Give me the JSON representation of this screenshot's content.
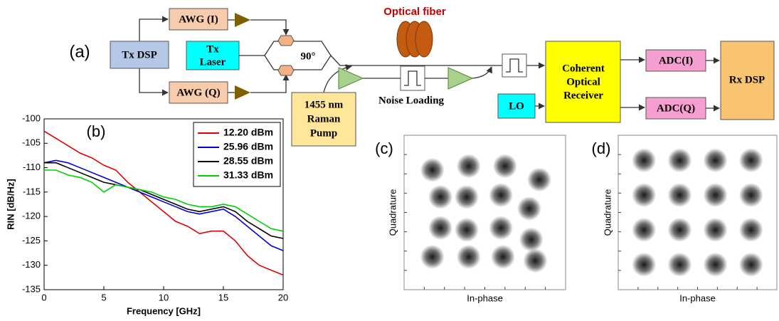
{
  "diagram": {
    "label": "(a)",
    "nodes": [
      {
        "lines": [
          "Tx DSP"
        ]
      },
      {
        "lines": [
          "AWG (I)"
        ]
      },
      {
        "lines": [
          "AWG (Q)"
        ]
      },
      {
        "lines": [
          "Tx",
          "Laser"
        ]
      },
      {
        "lines": [
          "90°"
        ]
      },
      {
        "lines": [
          "Optical fiber"
        ]
      },
      {
        "lines": [
          "1455 nm",
          "Raman",
          "Pump"
        ]
      },
      {
        "lines": [
          "Noise Loading"
        ]
      },
      {
        "lines": [
          "LO"
        ]
      },
      {
        "lines": [
          "Coherent",
          "Optical",
          "Receiver"
        ]
      },
      {
        "lines": [
          "ADC(I)"
        ]
      },
      {
        "lines": [
          "ADC(Q)"
        ]
      },
      {
        "lines": [
          "Rx DSP"
        ]
      }
    ]
  },
  "chart_data": [
    {
      "type": "line",
      "title": "(b)",
      "x_label": "Frequency [GHz]",
      "y_label": "RIN [dB/Hz]",
      "x": [
        0,
        1,
        2,
        3,
        4,
        5,
        6,
        7,
        8,
        9,
        10,
        11,
        12,
        13,
        14,
        15,
        16,
        17,
        18,
        19,
        20
      ],
      "series": [
        {
          "name": "12.20 dBm",
          "color": "#e00000",
          "values": [
            -102.5,
            -104,
            -105.5,
            -107,
            -108,
            -109.5,
            -110.5,
            -113,
            -115,
            -117,
            -119,
            -121,
            -122,
            -123.5,
            -123,
            -123,
            -125,
            -128,
            -130,
            -131,
            -132
          ]
        },
        {
          "name": "25.96 dBm",
          "color": "#0000d0",
          "values": [
            -109,
            -108.5,
            -109,
            -110,
            -111,
            -112,
            -113,
            -114,
            -115,
            -116,
            -117,
            -118,
            -119,
            -119.5,
            -119,
            -118.5,
            -120,
            -122,
            -124,
            -126,
            -127
          ]
        },
        {
          "name": "28.55 dBm",
          "color": "#000000",
          "values": [
            -109,
            -109,
            -110,
            -111,
            -112,
            -113,
            -113.5,
            -114,
            -114.5,
            -115.5,
            -116.5,
            -117.5,
            -118.5,
            -119,
            -118.5,
            -118,
            -119,
            -121,
            -122.5,
            -124,
            -124.5
          ]
        },
        {
          "name": "31.33 dBm",
          "color": "#00d000",
          "values": [
            -110.5,
            -110.5,
            -111.5,
            -112,
            -113,
            -115,
            -113.5,
            -114,
            -114.5,
            -115,
            -116,
            -116.5,
            -117.5,
            -118,
            -118,
            -117.5,
            -118,
            -119.5,
            -121,
            -122.5,
            -123
          ]
        }
      ],
      "xlim": [
        0,
        20
      ],
      "xticks": [
        0,
        5,
        10,
        15,
        20
      ],
      "ylim": [
        -135,
        -100
      ],
      "yticks": [
        -100,
        -105,
        -110,
        -115,
        -120,
        -125,
        -130,
        -135
      ],
      "legend": "upper right",
      "grid": false
    },
    {
      "type": "scatter",
      "title": "(c)",
      "x_label": "In-phase",
      "y_label": "Quadrature",
      "color": "#000000",
      "x": [
        -2.6,
        -0.8,
        1.0,
        2.7,
        2.2,
        2.3,
        2.5,
        0.9,
        -0.8,
        -2.6,
        -2.2,
        -2.2,
        -0.9,
        0.8,
        -0.9,
        0.8
      ],
      "values": [
        2.2,
        2.4,
        2.4,
        1.7,
        0.2,
        -1.4,
        -2.5,
        -2.3,
        -2.3,
        -2.3,
        -0.8,
        0.8,
        0.8,
        0.9,
        -0.9,
        -0.8
      ],
      "xlim": [
        -4,
        4
      ],
      "ylim": [
        -4,
        4
      ]
    },
    {
      "type": "scatter",
      "title": "(d)",
      "x_label": "In-phase",
      "y_label": "Quadrature",
      "color": "#000000",
      "x": [
        -2.7,
        -0.9,
        0.9,
        2.7,
        -2.7,
        -0.9,
        0.9,
        2.7,
        -2.7,
        -0.9,
        0.9,
        2.7,
        -2.7,
        -0.9,
        0.9,
        2.7
      ],
      "values": [
        2.7,
        2.7,
        2.7,
        2.7,
        0.9,
        0.9,
        0.9,
        0.9,
        -0.9,
        -0.9,
        -0.9,
        -0.9,
        -2.7,
        -2.7,
        -2.7,
        -2.7
      ],
      "xlim": [
        -4,
        4
      ],
      "ylim": [
        -4,
        4
      ]
    }
  ]
}
